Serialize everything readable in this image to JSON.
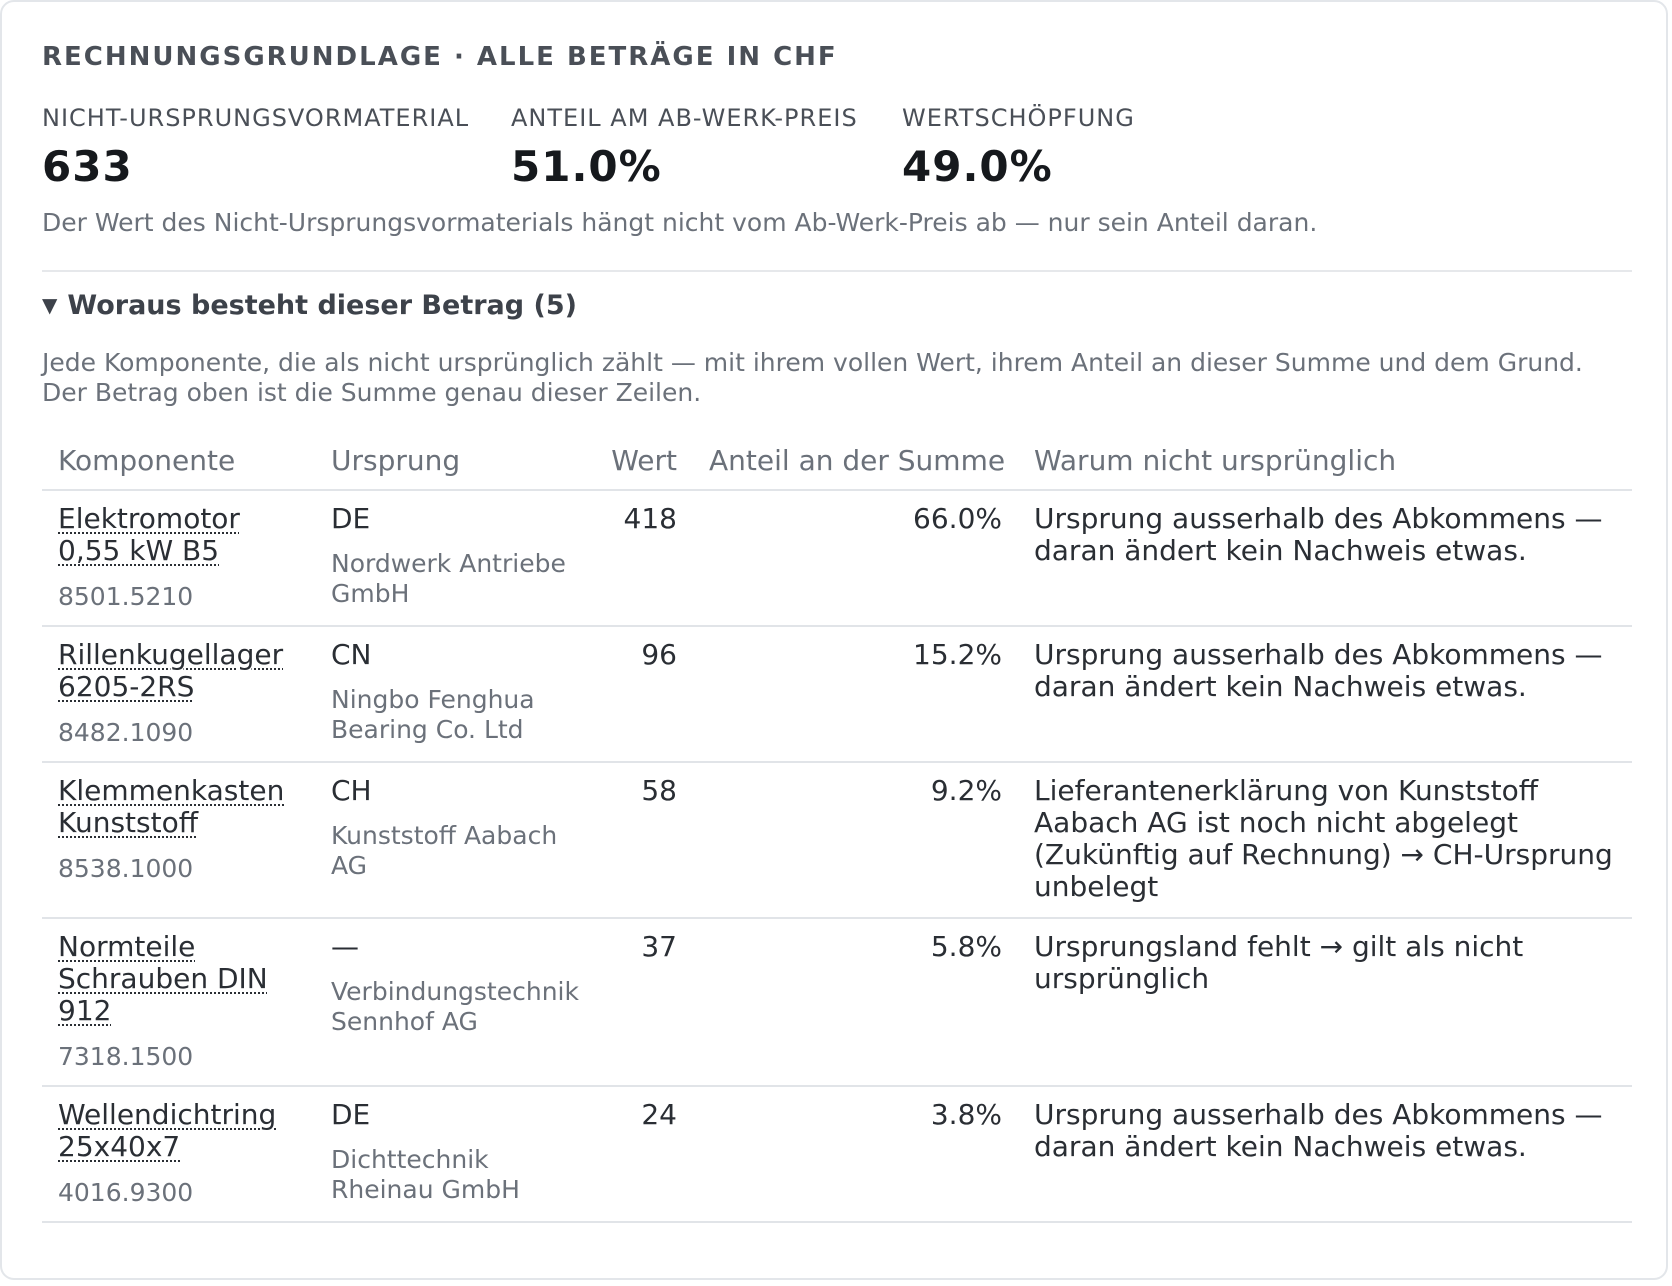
{
  "header": {
    "title": "RECHNUNGSGRUNDLAGE · ALLE BETRÄGE IN CHF"
  },
  "metrics": [
    {
      "label": "NICHT-URSPRUNGSVORMATERIAL",
      "value": "633"
    },
    {
      "label": "ANTEIL AM AB-WERK-PREIS",
      "value": "51.0%"
    },
    {
      "label": "WERTSCHÖPFUNG",
      "value": "49.0%"
    }
  ],
  "note": "Der Wert des Nicht-Ursprungsvormaterials hängt nicht vom Ab-Werk-Preis ab — nur sein Anteil daran.",
  "breakdown": {
    "summary": "Woraus besteht dieser Betrag (5)",
    "description": "Jede Komponente, die als nicht ursprünglich zählt — mit ihrem vollen Wert, ihrem Anteil an dieser Summe und dem Grund. Der Betrag oben ist die Summe genau dieser Zeilen.",
    "columns": {
      "component": "Komponente",
      "origin": "Ursprung",
      "value": "Wert",
      "share": "Anteil an der Summe",
      "reason": "Warum nicht ursprünglich"
    },
    "rows": [
      {
        "component": "Elektromotor 0,55 kW B5",
        "hs": "8501.5210",
        "origin": "DE",
        "supplier": "Nordwerk Antriebe GmbH",
        "value": "418",
        "share": "66.0%",
        "reason": "Ursprung ausserhalb des Abkommens — daran ändert kein Nachweis etwas."
      },
      {
        "component": "Rillenkugellager 6205-2RS",
        "hs": "8482.1090",
        "origin": "CN",
        "supplier": "Ningbo Fenghua Bearing Co. Ltd",
        "value": "96",
        "share": "15.2%",
        "reason": "Ursprung ausserhalb des Abkommens — daran ändert kein Nachweis etwas."
      },
      {
        "component": "Klemmenkasten Kunststoff",
        "hs": "8538.1000",
        "origin": "CH",
        "supplier": "Kunststoff Aabach AG",
        "value": "58",
        "share": "9.2%",
        "reason": "Lieferantenerklärung von Kunststoff Aabach AG ist noch nicht abgelegt (Zukünftig auf Rechnung) → CH-Ursprung unbelegt"
      },
      {
        "component": "Normteile Schrauben DIN 912",
        "hs": "7318.1500",
        "origin": "—",
        "supplier": "Verbindungstechnik Sennhof AG",
        "value": "37",
        "share": "5.8%",
        "reason": "Ursprungsland fehlt → gilt als nicht ursprünglich"
      },
      {
        "component": "Wellendichtring 25x40x7",
        "hs": "4016.9300",
        "origin": "DE",
        "supplier": "Dichttechnik Rheinau GmbH",
        "value": "24",
        "share": "3.8%",
        "reason": "Ursprung ausserhalb des Abkommens — daran ändert kein Nachweis etwas."
      }
    ]
  }
}
